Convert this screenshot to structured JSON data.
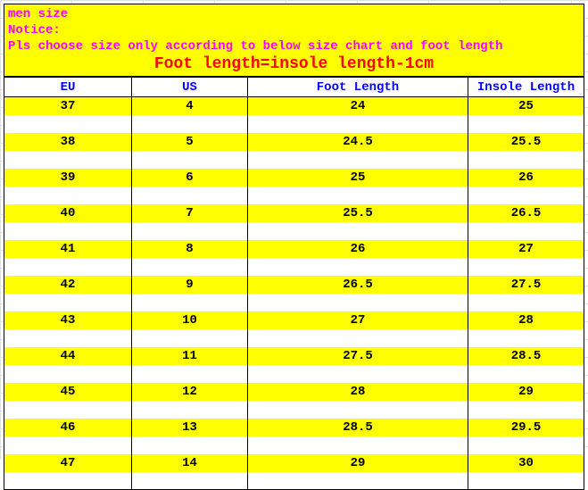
{
  "header": {
    "title": "men size",
    "notice_label": "Notice:",
    "notice_text": "Pls choose size only according to below size chart and foot length",
    "formula": "Foot length=insole length-1cm"
  },
  "table": {
    "columns": [
      "EU",
      "US",
      "Foot Length",
      "Insole Length"
    ],
    "rows": [
      [
        "37",
        "4",
        "24",
        "25"
      ],
      [
        "38",
        "5",
        "24.5",
        "25.5"
      ],
      [
        "39",
        "6",
        "25",
        "26"
      ],
      [
        "40",
        "7",
        "25.5",
        "26.5"
      ],
      [
        "41",
        "8",
        "26",
        "27"
      ],
      [
        "42",
        "9",
        "26.5",
        "27.5"
      ],
      [
        "43",
        "10",
        "27",
        "28"
      ],
      [
        "44",
        "11",
        "27.5",
        "28.5"
      ],
      [
        "45",
        "12",
        "28",
        "29"
      ],
      [
        "46",
        "13",
        "28.5",
        "29.5"
      ],
      [
        "47",
        "14",
        "29",
        "30"
      ]
    ],
    "header_bg": "#ffffff",
    "header_color": "#0000ff",
    "data_bg": "#ffff00",
    "stripe_bg": "#ffffff",
    "border_color": "#000000",
    "column_widths": [
      "22%",
      "20%",
      "38%",
      "20%"
    ]
  },
  "colors": {
    "highlight_bg": "#ffff00",
    "title_color": "#ff00ff",
    "formula_color": "#ff0000",
    "page_bg": "#ffffff",
    "grid_line": "#e0e0e0"
  }
}
